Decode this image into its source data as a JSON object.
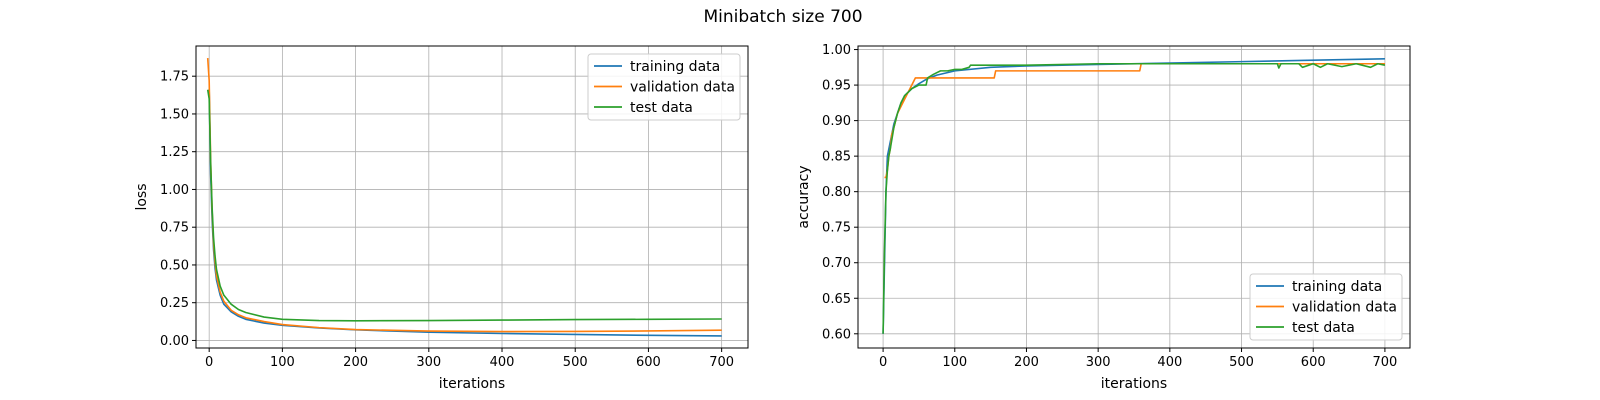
{
  "figure": {
    "title": "Minibatch size 700"
  },
  "colors": {
    "training": "#1f77b4",
    "validation": "#ff7f0e",
    "test": "#2ca02c",
    "grid": "#b0b0b0"
  },
  "chart_data": [
    {
      "type": "line",
      "title": "",
      "xlabel": "iterations",
      "ylabel": "loss",
      "xlim": [
        -18,
        736
      ],
      "ylim": [
        -0.05,
        1.95
      ],
      "xticks": [
        0,
        100,
        200,
        300,
        400,
        500,
        600,
        700
      ],
      "xtick_labels": [
        "0",
        "100",
        "200",
        "300",
        "400",
        "500",
        "600",
        "700"
      ],
      "yticks": [
        0,
        0.25,
        0.5,
        0.75,
        1.0,
        1.25,
        1.5,
        1.75
      ],
      "ytick_labels": [
        "0.00",
        "0.25",
        "0.50",
        "0.75",
        "1.00",
        "1.25",
        "1.50",
        "1.75"
      ],
      "grid": true,
      "legend": "top-right",
      "series": [
        {
          "name": "training data",
          "x": [
            0,
            2,
            4,
            6,
            8,
            10,
            15,
            20,
            30,
            40,
            50,
            75,
            100,
            150,
            200,
            300,
            400,
            500,
            600,
            700
          ],
          "y": [
            1.66,
            1.1,
            0.8,
            0.6,
            0.48,
            0.4,
            0.3,
            0.24,
            0.19,
            0.16,
            0.14,
            0.115,
            0.1,
            0.083,
            0.07,
            0.055,
            0.046,
            0.04,
            0.034,
            0.03
          ]
        },
        {
          "name": "validation data",
          "x": [
            -2,
            0,
            2,
            4,
            6,
            8,
            10,
            15,
            20,
            30,
            40,
            50,
            75,
            100,
            150,
            200,
            300,
            400,
            500,
            600,
            700
          ],
          "y": [
            1.87,
            1.72,
            1.2,
            0.86,
            0.64,
            0.52,
            0.43,
            0.32,
            0.26,
            0.2,
            0.17,
            0.15,
            0.125,
            0.105,
            0.085,
            0.072,
            0.062,
            0.059,
            0.06,
            0.063,
            0.068
          ]
        },
        {
          "name": "test data",
          "x": [
            -2,
            0,
            2,
            4,
            6,
            8,
            10,
            15,
            20,
            30,
            40,
            50,
            75,
            100,
            150,
            200,
            300,
            400,
            500,
            600,
            700
          ],
          "y": [
            1.66,
            1.6,
            1.18,
            0.88,
            0.68,
            0.56,
            0.47,
            0.36,
            0.3,
            0.24,
            0.205,
            0.185,
            0.155,
            0.14,
            0.132,
            0.13,
            0.132,
            0.135,
            0.138,
            0.14,
            0.142
          ]
        }
      ]
    },
    {
      "type": "line",
      "title": "",
      "xlabel": "iterations",
      "ylabel": "accuracy",
      "xlim": [
        -35,
        735
      ],
      "ylim": [
        0.58,
        1.005
      ],
      "xticks": [
        0,
        100,
        200,
        300,
        400,
        500,
        600,
        700
      ],
      "xtick_labels": [
        "0",
        "100",
        "200",
        "300",
        "400",
        "500",
        "600",
        "700"
      ],
      "yticks": [
        0.6,
        0.65,
        0.7,
        0.75,
        0.8,
        0.85,
        0.9,
        0.95,
        1.0
      ],
      "ytick_labels": [
        "0.60",
        "0.65",
        "0.70",
        "0.75",
        "0.80",
        "0.85",
        "0.90",
        "0.95",
        "1.00"
      ],
      "grid": true,
      "legend": "bottom-right",
      "series": [
        {
          "name": "training data",
          "x": [
            0,
            2,
            4,
            6,
            8,
            10,
            15,
            20,
            25,
            30,
            40,
            50,
            60,
            75,
            100,
            150,
            200,
            300,
            400,
            500,
            600,
            700
          ],
          "y": [
            0.6,
            0.7,
            0.8,
            0.85,
            0.86,
            0.87,
            0.895,
            0.91,
            0.925,
            0.935,
            0.945,
            0.952,
            0.958,
            0.964,
            0.97,
            0.975,
            0.977,
            0.979,
            0.981,
            0.983,
            0.985,
            0.987
          ]
        },
        {
          "name": "validation data",
          "x": [
            2,
            4,
            6,
            8,
            10,
            12,
            15,
            20,
            25,
            30,
            35,
            40,
            45,
            60,
            80,
            120,
            155,
            157,
            200,
            300,
            358,
            360,
            400,
            500,
            600,
            700
          ],
          "y": [
            0.82,
            0.82,
            0.83,
            0.85,
            0.86,
            0.88,
            0.89,
            0.91,
            0.92,
            0.93,
            0.94,
            0.95,
            0.96,
            0.96,
            0.96,
            0.96,
            0.96,
            0.97,
            0.97,
            0.97,
            0.97,
            0.98,
            0.98,
            0.98,
            0.98,
            0.98
          ]
        },
        {
          "name": "test data",
          "x": [
            0,
            2,
            4,
            6,
            8,
            10,
            15,
            20,
            25,
            30,
            40,
            50,
            60,
            62,
            70,
            80,
            90,
            100,
            110,
            120,
            122,
            150,
            200,
            300,
            400,
            500,
            550,
            552,
            555,
            580,
            585,
            600,
            610,
            620,
            640,
            660,
            680,
            690,
            700
          ],
          "y": [
            0.6,
            0.72,
            0.8,
            0.83,
            0.85,
            0.86,
            0.89,
            0.91,
            0.925,
            0.935,
            0.945,
            0.95,
            0.95,
            0.96,
            0.965,
            0.97,
            0.97,
            0.972,
            0.972,
            0.975,
            0.978,
            0.978,
            0.978,
            0.98,
            0.98,
            0.98,
            0.98,
            0.974,
            0.98,
            0.98,
            0.975,
            0.98,
            0.975,
            0.98,
            0.976,
            0.98,
            0.975,
            0.98,
            0.978
          ]
        }
      ]
    }
  ]
}
